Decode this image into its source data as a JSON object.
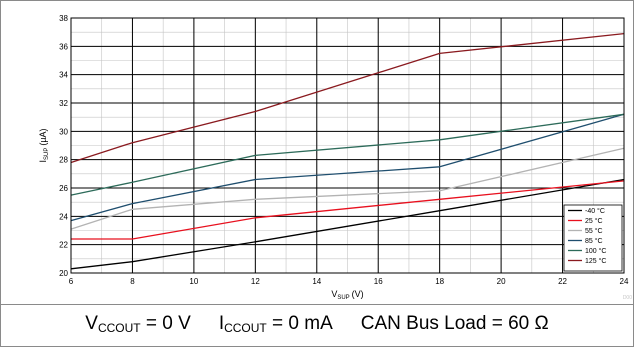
{
  "chart_data": {
    "type": "line",
    "xlabel": "V",
    "xlabel_sub": "SUP",
    "xlabel_unit": "(V)",
    "ylabel": "I",
    "ylabel_sub": "SUP",
    "ylabel_unit": "(µA)",
    "xlim": [
      6,
      24
    ],
    "ylim": [
      20,
      38
    ],
    "x_ticks": [
      6,
      8,
      10,
      12,
      14,
      16,
      18,
      20,
      22,
      24
    ],
    "y_ticks": [
      20,
      22,
      24,
      26,
      28,
      30,
      32,
      34,
      36,
      38
    ],
    "x_minor_step": 1,
    "y_minor_step": 1,
    "grid": true,
    "legend_position": "bottom-right",
    "series": [
      {
        "name": "-40 °C",
        "color": "#000000",
        "x": [
          6,
          8,
          12,
          18,
          24
        ],
        "values": [
          20.3,
          20.8,
          22.2,
          24.4,
          26.6
        ]
      },
      {
        "name": "25 °C",
        "color": "#e8101e",
        "x": [
          6,
          8,
          12,
          18,
          24
        ],
        "values": [
          22.4,
          22.4,
          23.9,
          25.2,
          26.5
        ]
      },
      {
        "name": "55 °C",
        "color": "#b3b3b3",
        "x": [
          6,
          8,
          12,
          18,
          24
        ],
        "values": [
          23.1,
          24.5,
          25.2,
          25.8,
          28.8
        ]
      },
      {
        "name": "85 °C",
        "color": "#1f4e6e",
        "x": [
          6,
          8,
          12,
          18,
          24
        ],
        "values": [
          23.7,
          24.9,
          26.6,
          27.5,
          31.2
        ]
      },
      {
        "name": "100 °C",
        "color": "#2d6b5a",
        "x": [
          6,
          8,
          12,
          18,
          24
        ],
        "values": [
          25.5,
          26.4,
          28.3,
          29.4,
          31.2
        ]
      },
      {
        "name": "125 °C",
        "color": "#8a1a1f",
        "x": [
          6,
          8,
          12,
          18,
          24
        ],
        "values": [
          27.8,
          29.2,
          31.4,
          35.5,
          36.9
        ]
      }
    ]
  },
  "figure_id": "D00",
  "caption": {
    "vccout": {
      "main": "V",
      "sub": "CCOUT",
      "rest": " = 0 V"
    },
    "iccout": {
      "main": "I",
      "sub": "CCOUT",
      "rest": " = 0 mA"
    },
    "load": "CAN Bus Load = 60 Ω"
  }
}
